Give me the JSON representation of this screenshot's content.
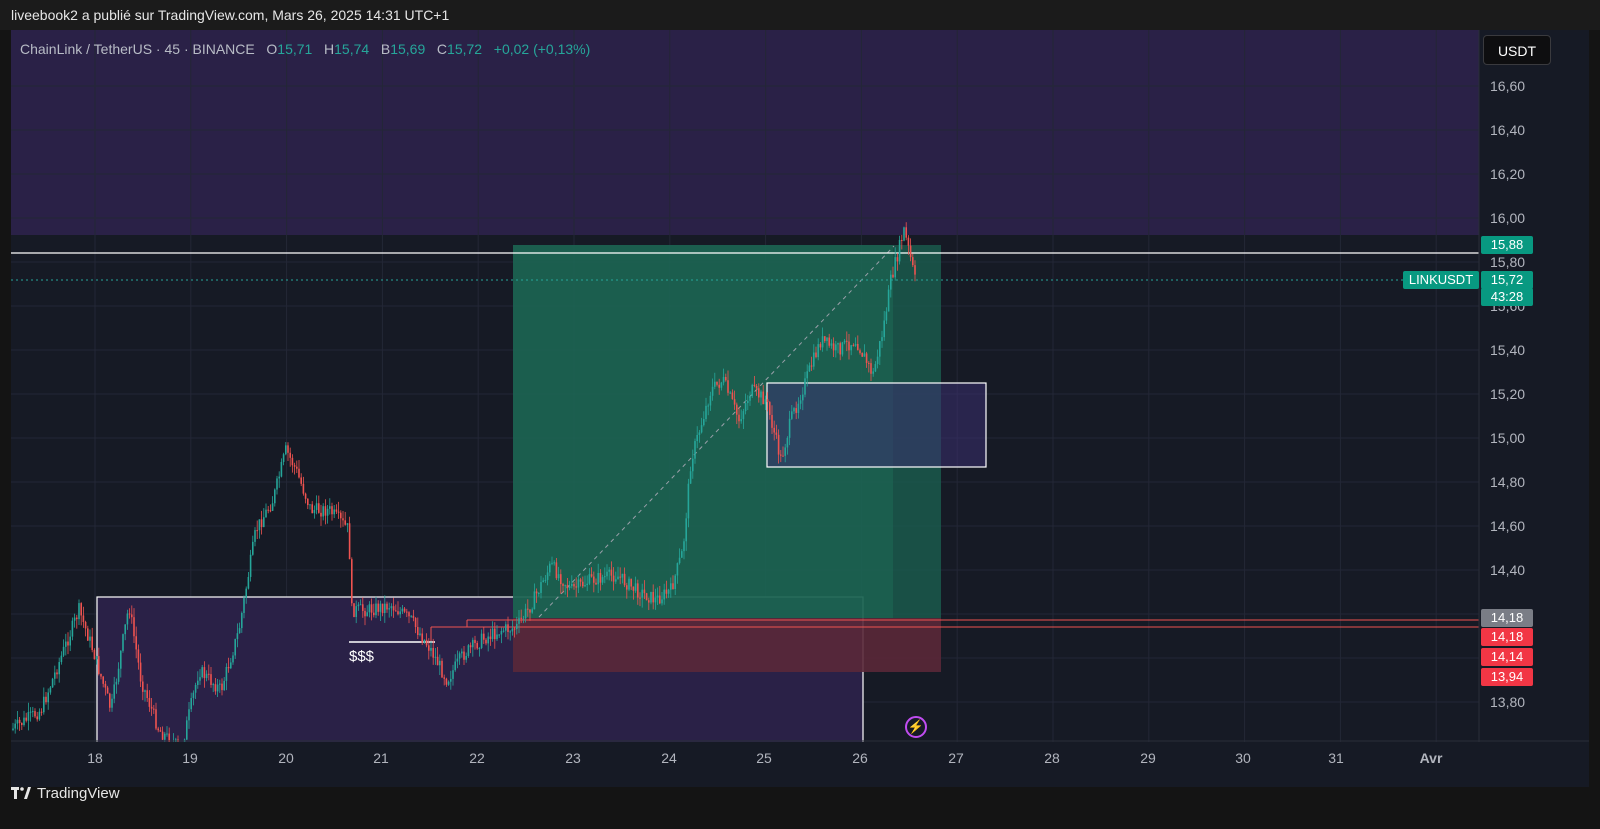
{
  "header": {
    "published_text": "liveebook2 a publié sur TradingView.com, Mars 26, 2025 14:31 UTC+1"
  },
  "legend": {
    "symbol": "ChainLink / TetherUS · 45 · BINANCE",
    "o_label": "O",
    "o_value": "15,71",
    "h_label": "H",
    "h_value": "15,74",
    "b_label": "B",
    "b_value": "15,69",
    "c_label": "C",
    "c_value": "15,72",
    "change": "+0,02 (+0,13%)"
  },
  "currency_button": "USDT",
  "y_axis": [
    "16,60",
    "16,40",
    "16,20",
    "16,00",
    "15,80",
    "15,60",
    "15,40",
    "15,20",
    "15,00",
    "14,80",
    "14,60",
    "14,40",
    "13,80"
  ],
  "x_axis": [
    "18",
    "19",
    "20",
    "21",
    "22",
    "23",
    "24",
    "25",
    "26",
    "27",
    "28",
    "29",
    "30",
    "31",
    "Avr"
  ],
  "price_tags": {
    "level_white": "15,88",
    "last_price": "15,72",
    "countdown": "43:28",
    "level_gray": "14,18",
    "level_red_1": "14,18",
    "level_red_2": "14,14",
    "level_red_3": "13,94"
  },
  "symbol_tag": "LINKUSDT",
  "annotation_liquidity": "$$$",
  "footer": {
    "brand": "TradingView"
  },
  "colors": {
    "up": "#26a69a",
    "down": "#ef5350",
    "long_profit_zone": "#1e7a62",
    "long_loss_zone": "#7a2a3a",
    "premium_zone": "#3a2a6a"
  }
}
